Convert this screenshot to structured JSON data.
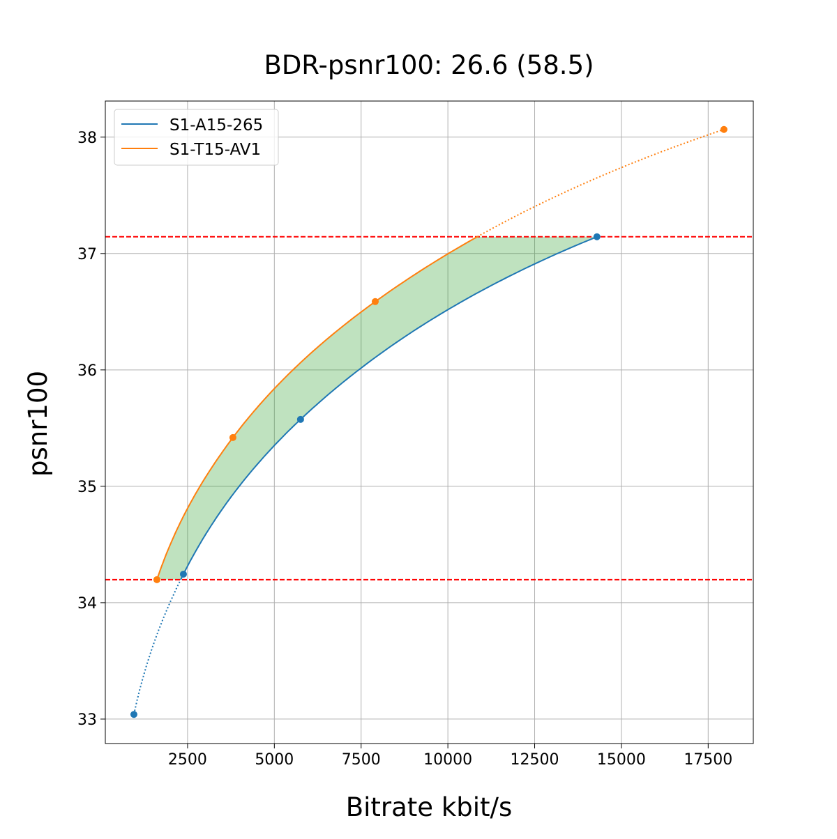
{
  "chart_data": {
    "type": "line",
    "title": "BDR-psnr100: 26.6 (58.5)",
    "xlabel": "Bitrate kbit/s",
    "ylabel": "psnr100",
    "xlim": [
      130,
      18800
    ],
    "ylim": [
      32.79,
      38.31
    ],
    "xticks": [
      2500,
      5000,
      7500,
      10000,
      12500,
      15000,
      17500
    ],
    "yticks": [
      33,
      34,
      35,
      36,
      37,
      38
    ],
    "grid": true,
    "legend_position": "top-left",
    "series": [
      {
        "name": "S1-A15-265",
        "color": "#1f77b4",
        "x": [
          953,
          2380,
          5755,
          14295
        ],
        "y": [
          33.04,
          34.245,
          35.575,
          37.144
        ]
      },
      {
        "name": "S1-T15-AV1",
        "color": "#ff7f0e",
        "x": [
          1616,
          3806,
          7907,
          17954
        ],
        "y": [
          34.198,
          35.419,
          36.587,
          38.066
        ]
      }
    ],
    "reference_lines": {
      "y": [
        37.144,
        34.198
      ],
      "color": "#ff0000",
      "style": "dashed"
    },
    "fill": {
      "color": "#2ca02c",
      "opacity": 0.3,
      "between": "series curves within reference lines"
    }
  }
}
